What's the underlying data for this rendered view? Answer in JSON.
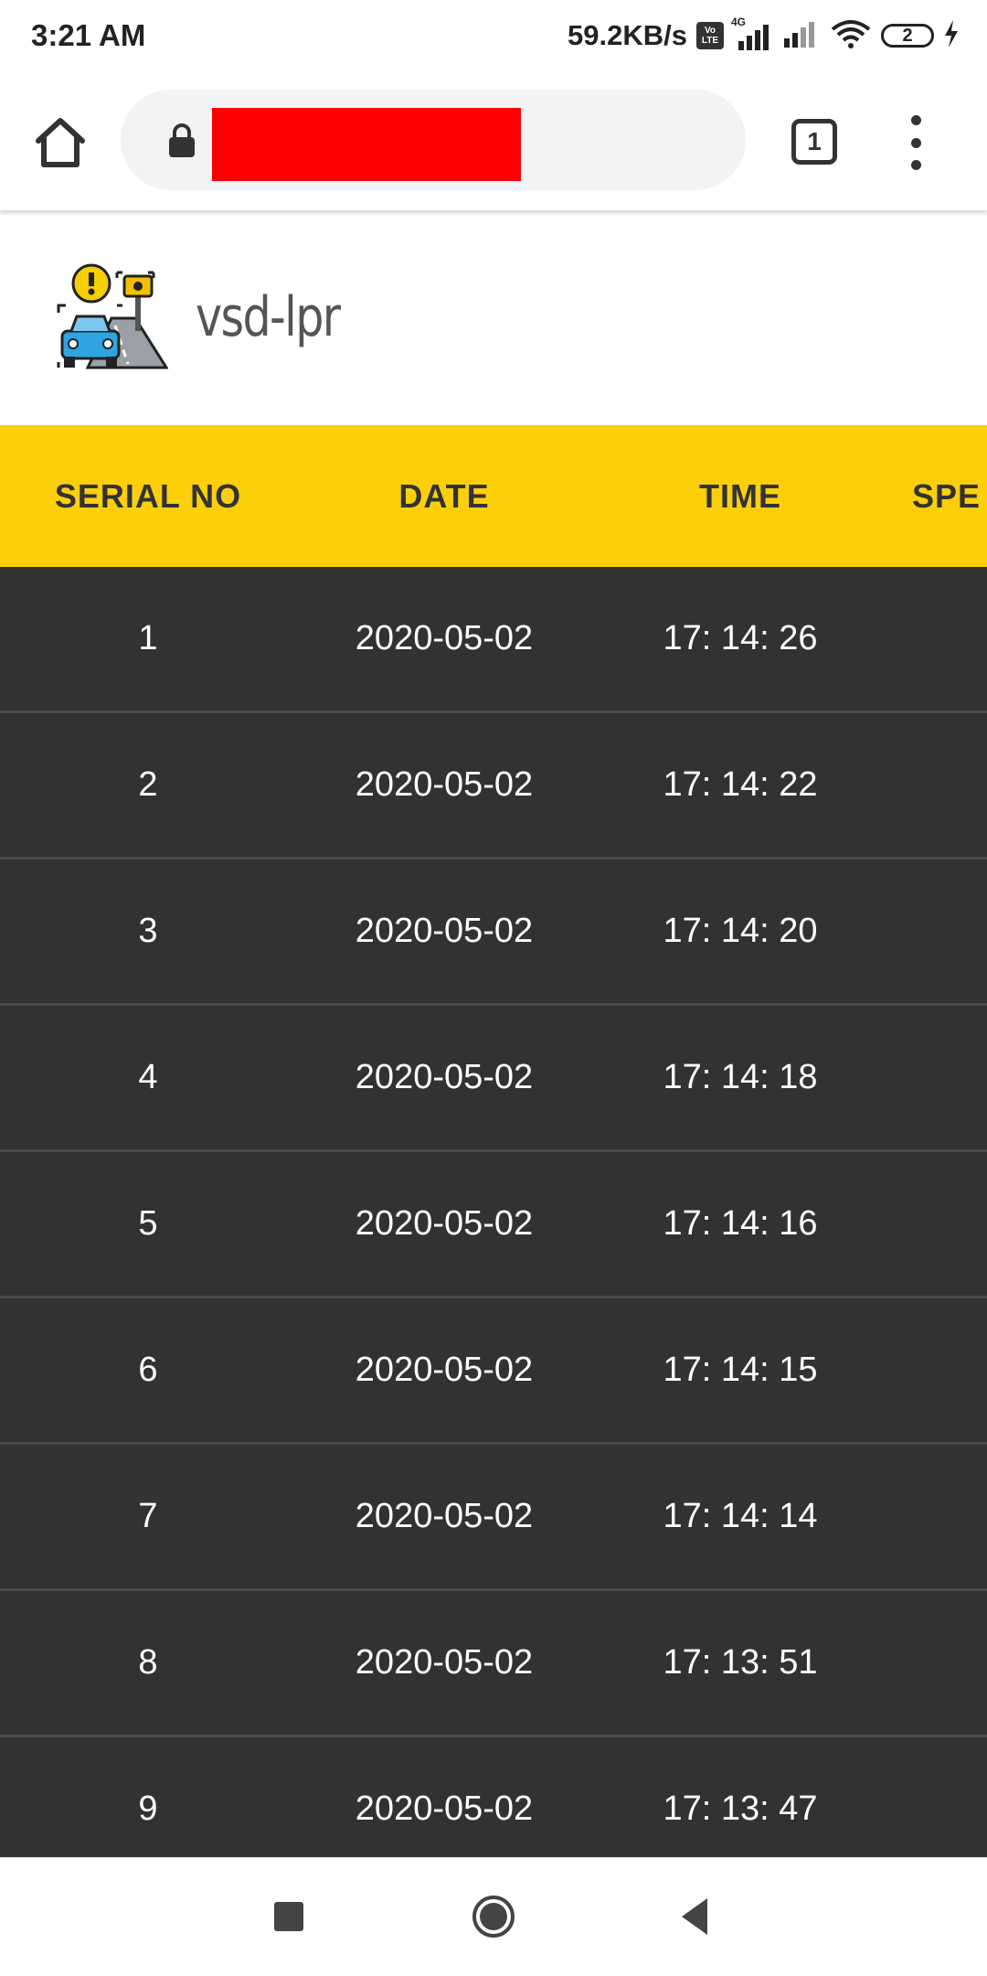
{
  "status_bar": {
    "time": "3:21 AM",
    "net_speed": "59.2KB/s",
    "volte_top": "Vo",
    "volte_bottom": "LTE",
    "network_type": "4G",
    "battery_level": "2"
  },
  "browser": {
    "url_redacted": true,
    "tab_count": "1"
  },
  "site": {
    "title": "vsd-lpr"
  },
  "table": {
    "headers": [
      "SERIAL NO",
      "DATE",
      "TIME",
      "SPE"
    ],
    "rows": [
      {
        "serial": "1",
        "date": "2020-05-02",
        "time": "17: 14: 26"
      },
      {
        "serial": "2",
        "date": "2020-05-02",
        "time": "17: 14: 22"
      },
      {
        "serial": "3",
        "date": "2020-05-02",
        "time": "17: 14: 20"
      },
      {
        "serial": "4",
        "date": "2020-05-02",
        "time": "17: 14: 18"
      },
      {
        "serial": "5",
        "date": "2020-05-02",
        "time": "17: 14: 16"
      },
      {
        "serial": "6",
        "date": "2020-05-02",
        "time": "17: 14: 15"
      },
      {
        "serial": "7",
        "date": "2020-05-02",
        "time": "17: 14: 14"
      },
      {
        "serial": "8",
        "date": "2020-05-02",
        "time": "17: 13: 51"
      },
      {
        "serial": "9",
        "date": "2020-05-02",
        "time": "17: 13: 47"
      }
    ]
  },
  "colors": {
    "header_bg": "#fccf0a",
    "row_bg": "#323232",
    "row_divider": "#4a4a4a",
    "redaction": "#ff0000"
  },
  "icons": [
    "home-icon",
    "lock-icon",
    "tab-switcher-icon",
    "more-vert-icon",
    "camera-car-logo",
    "recents-icon",
    "home-circle-icon",
    "back-icon"
  ]
}
